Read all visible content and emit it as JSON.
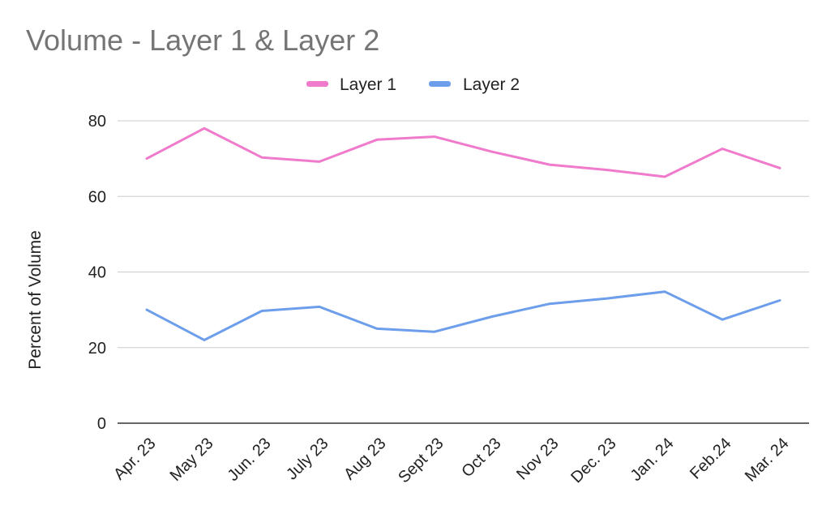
{
  "chart_data": {
    "type": "line",
    "title": "Volume - Layer 1 & Layer 2",
    "xlabel": "",
    "ylabel": "Percent of Volume",
    "ylim": [
      0,
      80
    ],
    "yticks": [
      "0",
      "20",
      "40",
      "60",
      "80"
    ],
    "grid": true,
    "legend_position": "top",
    "categories": [
      "Apr. 23",
      "May 23",
      "Jun. 23",
      "July 23",
      "Aug 23",
      "Sept 23",
      "Oct 23",
      "Nov 23",
      "Dec. 23",
      "Jan. 24",
      "Feb.24",
      "Mar. 24"
    ],
    "series": [
      {
        "name": "Layer 1",
        "color": "#f07acb",
        "values": [
          70,
          78,
          70.3,
          69.2,
          75,
          75.8,
          71.8,
          68.4,
          67,
          65.2,
          72.6,
          67.5
        ]
      },
      {
        "name": "Layer 2",
        "color": "#6d9eeb",
        "values": [
          30,
          22,
          29.7,
          30.8,
          25,
          24.2,
          28.2,
          31.6,
          33,
          34.8,
          27.4,
          32.5
        ]
      }
    ]
  }
}
